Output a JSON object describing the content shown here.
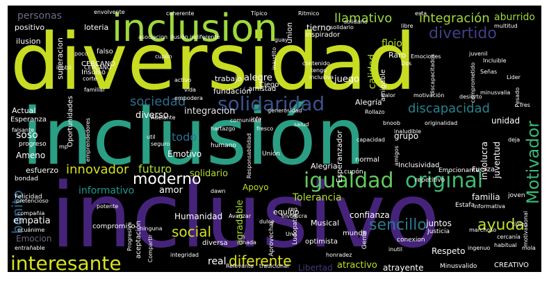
{
  "colors": {
    "background": "#000000",
    "yellow": "#d8e21f",
    "lime": "#9dd93a",
    "green": "#35b779",
    "teal": "#21918c",
    "blue": "#31688e",
    "indigo": "#443983",
    "purple": "#440154"
  },
  "words": {
    "diversidad": "diversidad",
    "inclusion_accent": "inclusión",
    "inclusivo": "inclusivo",
    "inclusion": "inclusion",
    "igualdad": "igualdad",
    "original": "original",
    "interesante": "interesante",
    "solidaridad": "solidaridad",
    "divertido": "divertido",
    "moderno": "moderno",
    "integracion_accent": "integración",
    "llamativo": "llamativo",
    "motivador": "Motivador",
    "sencillo": "sencillo",
    "ayuda": "ayuda",
    "diferente": "diferente",
    "social": "social",
    "discapacidad": "discapacidad",
    "innovador": "innovador",
    "sociedad": "sociedad",
    "bonito": "bonito",
    "futuro": "futuro",
    "personas": "personas",
    "aburrido": "aburrido",
    "flojo": "flojo",
    "calidad": "calidad",
    "solidario": "solidario",
    "informativo": "informativo",
    "todo": "todo",
    "diverso": "diverso",
    "integracion": "integracion",
    "empatia": "empatia",
    "humanidad": "Humanidad",
    "agradable": "agradable",
    "tolerancia": "Tolerancia",
    "apoyo": "Apoyo",
    "amor": "amor",
    "real": "real",
    "atractivo": "atractivo",
    "respeto": "Respeto",
    "libertad": "Libertad",
    "alegre": "alegre",
    "juego": "juego",
    "emotivo": "Emotivo",
    "soso": "soso",
    "ameno": "Ameno",
    "unidad": "unidad",
    "juventud": "juventud",
    "familia": "familia",
    "involucra": "involucra",
    "grupo": "grupo",
    "emocion": "Emocion",
    "tierno": "tierno",
    "fundacion": "fundación",
    "trabajo": "trabajo",
    "superacion": "superacion",
    "union": "union",
    "positivo": "positivo",
    "ilusion": "ilusion",
    "loteria": "loteria",
    "raro": "Raro",
    "esperanzador": "Esperanzador",
    "musical": "Musical",
    "alegria": "Alegria",
    "alegria_accent": "Alegría",
    "confianza": "confianza",
    "juntos": "juntos",
    "esfuerzo": "esfuerzo",
    "equipo": "equipo",
    "actual": "Actual",
    "esperanza": "Esperanza",
    "oportunidades": "Oportunidades",
    "compromiso": "compromiso",
    "inspirador": "inspirador",
    "inclusividad": "Inclusividad",
    "amigable": "amigable",
    "amistad": "amistad",
    "insulso": "Insulso",
    "ciego": "Ciego",
    "falso": "falso",
    "cercano": "CERCANO",
    "normal": "normal",
    "atrayente": "atrayente",
    "creativo": "CREATIVO",
    "felicidad": "Felicidad",
    "progreso": "progreso",
    "bondad": "bondad",
    "humano": "humano",
    "aceptacion": "aceptación",
    "aprovechar": "Aprovechar",
    "diversa": "diversa",
    "optimista": "optimista",
    "mundo": "mundo",
    "ludopatia": "Ludopatia",
    "justicia": "Justicia",
    "gente": "Gente",
    "conexion": "conexion",
    "minusvalido": "Minusvalido",
    "estafa": "Estafa",
    "fuerza": "Fuerza",
    "emocionante": "Emocionante",
    "joven": "joven",
    "repetitivo": "repetitivo",
    "asociacion": "asociacion",
    "ilusion_accent": "ilusión",
    "indiferente": "indiferente",
    "emociones": "Emociones",
    "tipico": "Típico",
    "ritmico": "Ritmico",
    "solidario_small": "solidario",
    "libertad_small": "libre",
    "multitud": "multitud",
    "esta": "esta",
    "juvenil": "juvenil",
    "incluible": "Incluible",
    "comprometido": "comprometido",
    "lider": "Lider",
    "minusvalia": "minusvalia",
    "pesado": "Pesado",
    "desierto": "desierto",
    "motivacion": "motivación",
    "originalidad": "originalidad",
    "valor": "valor",
    "generosidad": "generosidad",
    "comunidad": "comunidad",
    "salud": "salud",
    "fresco": "fresco",
    "info": "info",
    "hartazgo": "hartazgo",
    "responsabilidad": "Responsabilidad",
    "union_accent": "Unión",
    "cupon": "cupón",
    "amigos": "amigos",
    "envolvente": "envolvente",
    "inclusiva": "inclusiva",
    "contenido": "contenido",
    "discapacitados": "discapacitados",
    "tengo": "tengo",
    "dos": "Dos",
    "vida": "vida",
    "activo": "activo",
    "corte": "corte",
    "poco": "poco",
    "familiar": "familiar",
    "ibhbii": "ibhbii",
    "pretencioso": "pretencioso",
    "falsante": "falsante",
    "emprendedores": "emprendedores",
    "adelante": "Adelante",
    "seguro": "seguro",
    "util": "util",
    "ecunime": "ecuánime",
    "potente": "potente",
    "entranable": "entrañable",
    "compania": "compañia",
    "progresiva": "Progresiva",
    "ninguna": "ninguna",
    "integridad": "integridad",
    "nada": "nada",
    "relevante": "Relevante",
    "tradicional": "tradicional",
    "compartir": "Compartir",
    "honradez": "honradez",
    "ingenuo": "ingenuo",
    "habitual": "habitual",
    "mola": "mola",
    "motivacional": "motivacional",
    "inutil": "inutil",
    "informativa": "informativa",
    "cercania": "cercanía",
    "tipico_small": "típico",
    "marchoso": "marchoso",
    "uno": "Uno",
    "dulce": "dulce",
    "involucra_small": "Involucra",
    "avanzar": "Avanzar",
    "dawn": "dawn",
    "bnoob": "bnoob",
    "rollazo": "Rollazo",
    "capacidad": "capacidad",
    "inaludible": "inaludible",
    "senas": "Señas",
    "tres": "Tres",
    "reg": "reg",
    "guay": "guay",
    "coherente": "coherente",
    "solidario2": "solidario",
    "cupon_small": "cupón",
    "inaudito": "inaudito",
    "empodera": "empodera",
    "mp": "mp",
    "deja": "deja",
    "cercano_small": "CERCANO"
  }
}
